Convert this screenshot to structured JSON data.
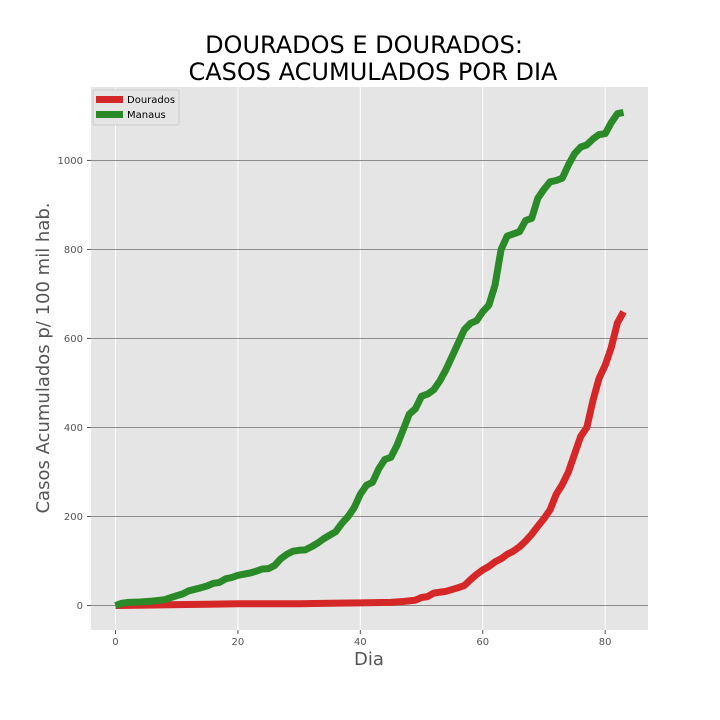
{
  "chart_data": {
    "type": "line",
    "title_line1": "DOURADOS E DOURADOS:",
    "title_line2": "CASOS ACUMULADOS POR DIA",
    "xlabel": "Dia",
    "ylabel": "Casos Acumulados p/ 100 mil hab.",
    "xlim": [
      -4,
      87
    ],
    "ylim": [
      -55,
      1165
    ],
    "xticks": [
      0,
      20,
      40,
      60,
      80
    ],
    "yticks": [
      0,
      200,
      400,
      600,
      800,
      1000
    ],
    "grid": true,
    "legend_position": "upper-left",
    "series": [
      {
        "name": "Dourados",
        "color": "#d62728",
        "x": [
          0,
          5,
          10,
          15,
          20,
          25,
          30,
          35,
          40,
          45,
          47,
          49,
          50,
          51,
          52,
          54,
          56,
          57,
          58,
          59,
          60,
          61,
          62,
          63,
          64,
          65,
          66,
          67,
          68,
          69,
          70,
          71,
          72,
          73,
          74,
          75,
          76,
          77,
          78,
          79,
          80,
          81,
          82,
          83
        ],
        "y": [
          0,
          1,
          2,
          3,
          4,
          4,
          4,
          5,
          6,
          7,
          9,
          12,
          18,
          20,
          28,
          32,
          40,
          45,
          58,
          70,
          80,
          88,
          98,
          105,
          115,
          122,
          132,
          145,
          160,
          178,
          195,
          215,
          250,
          272,
          300,
          340,
          380,
          400,
          460,
          510,
          540,
          580,
          635,
          660
        ]
      },
      {
        "name": "Manaus",
        "color": "#2a8a27",
        "x": [
          0,
          1,
          2,
          4,
          6,
          8,
          10,
          11,
          12,
          14,
          15,
          16,
          17,
          18,
          19,
          20,
          22,
          23,
          24,
          25,
          26,
          27,
          28,
          29,
          30,
          31,
          32,
          33,
          34,
          35,
          36,
          37,
          38,
          39,
          40,
          41,
          42,
          43,
          44,
          45,
          46,
          47,
          48,
          49,
          50,
          51,
          52,
          53,
          54,
          55,
          56,
          57,
          58,
          59,
          60,
          61,
          62,
          63,
          64,
          65,
          66,
          67,
          68,
          69,
          70,
          71,
          72,
          73,
          74,
          75,
          76,
          77,
          78,
          79,
          80,
          81,
          82,
          83
        ],
        "y": [
          0,
          5,
          7,
          8,
          10,
          13,
          22,
          26,
          33,
          40,
          44,
          50,
          52,
          60,
          63,
          68,
          73,
          77,
          82,
          83,
          90,
          105,
          115,
          122,
          124,
          125,
          132,
          140,
          150,
          158,
          166,
          185,
          200,
          220,
          250,
          270,
          277,
          307,
          328,
          333,
          360,
          395,
          430,
          442,
          470,
          475,
          485,
          505,
          530,
          560,
          590,
          620,
          634,
          640,
          660,
          675,
          720,
          800,
          830,
          835,
          840,
          865,
          870,
          915,
          935,
          952,
          955,
          960,
          990,
          1015,
          1030,
          1035,
          1048,
          1058,
          1060,
          1085,
          1105,
          1108
        ]
      }
    ]
  }
}
